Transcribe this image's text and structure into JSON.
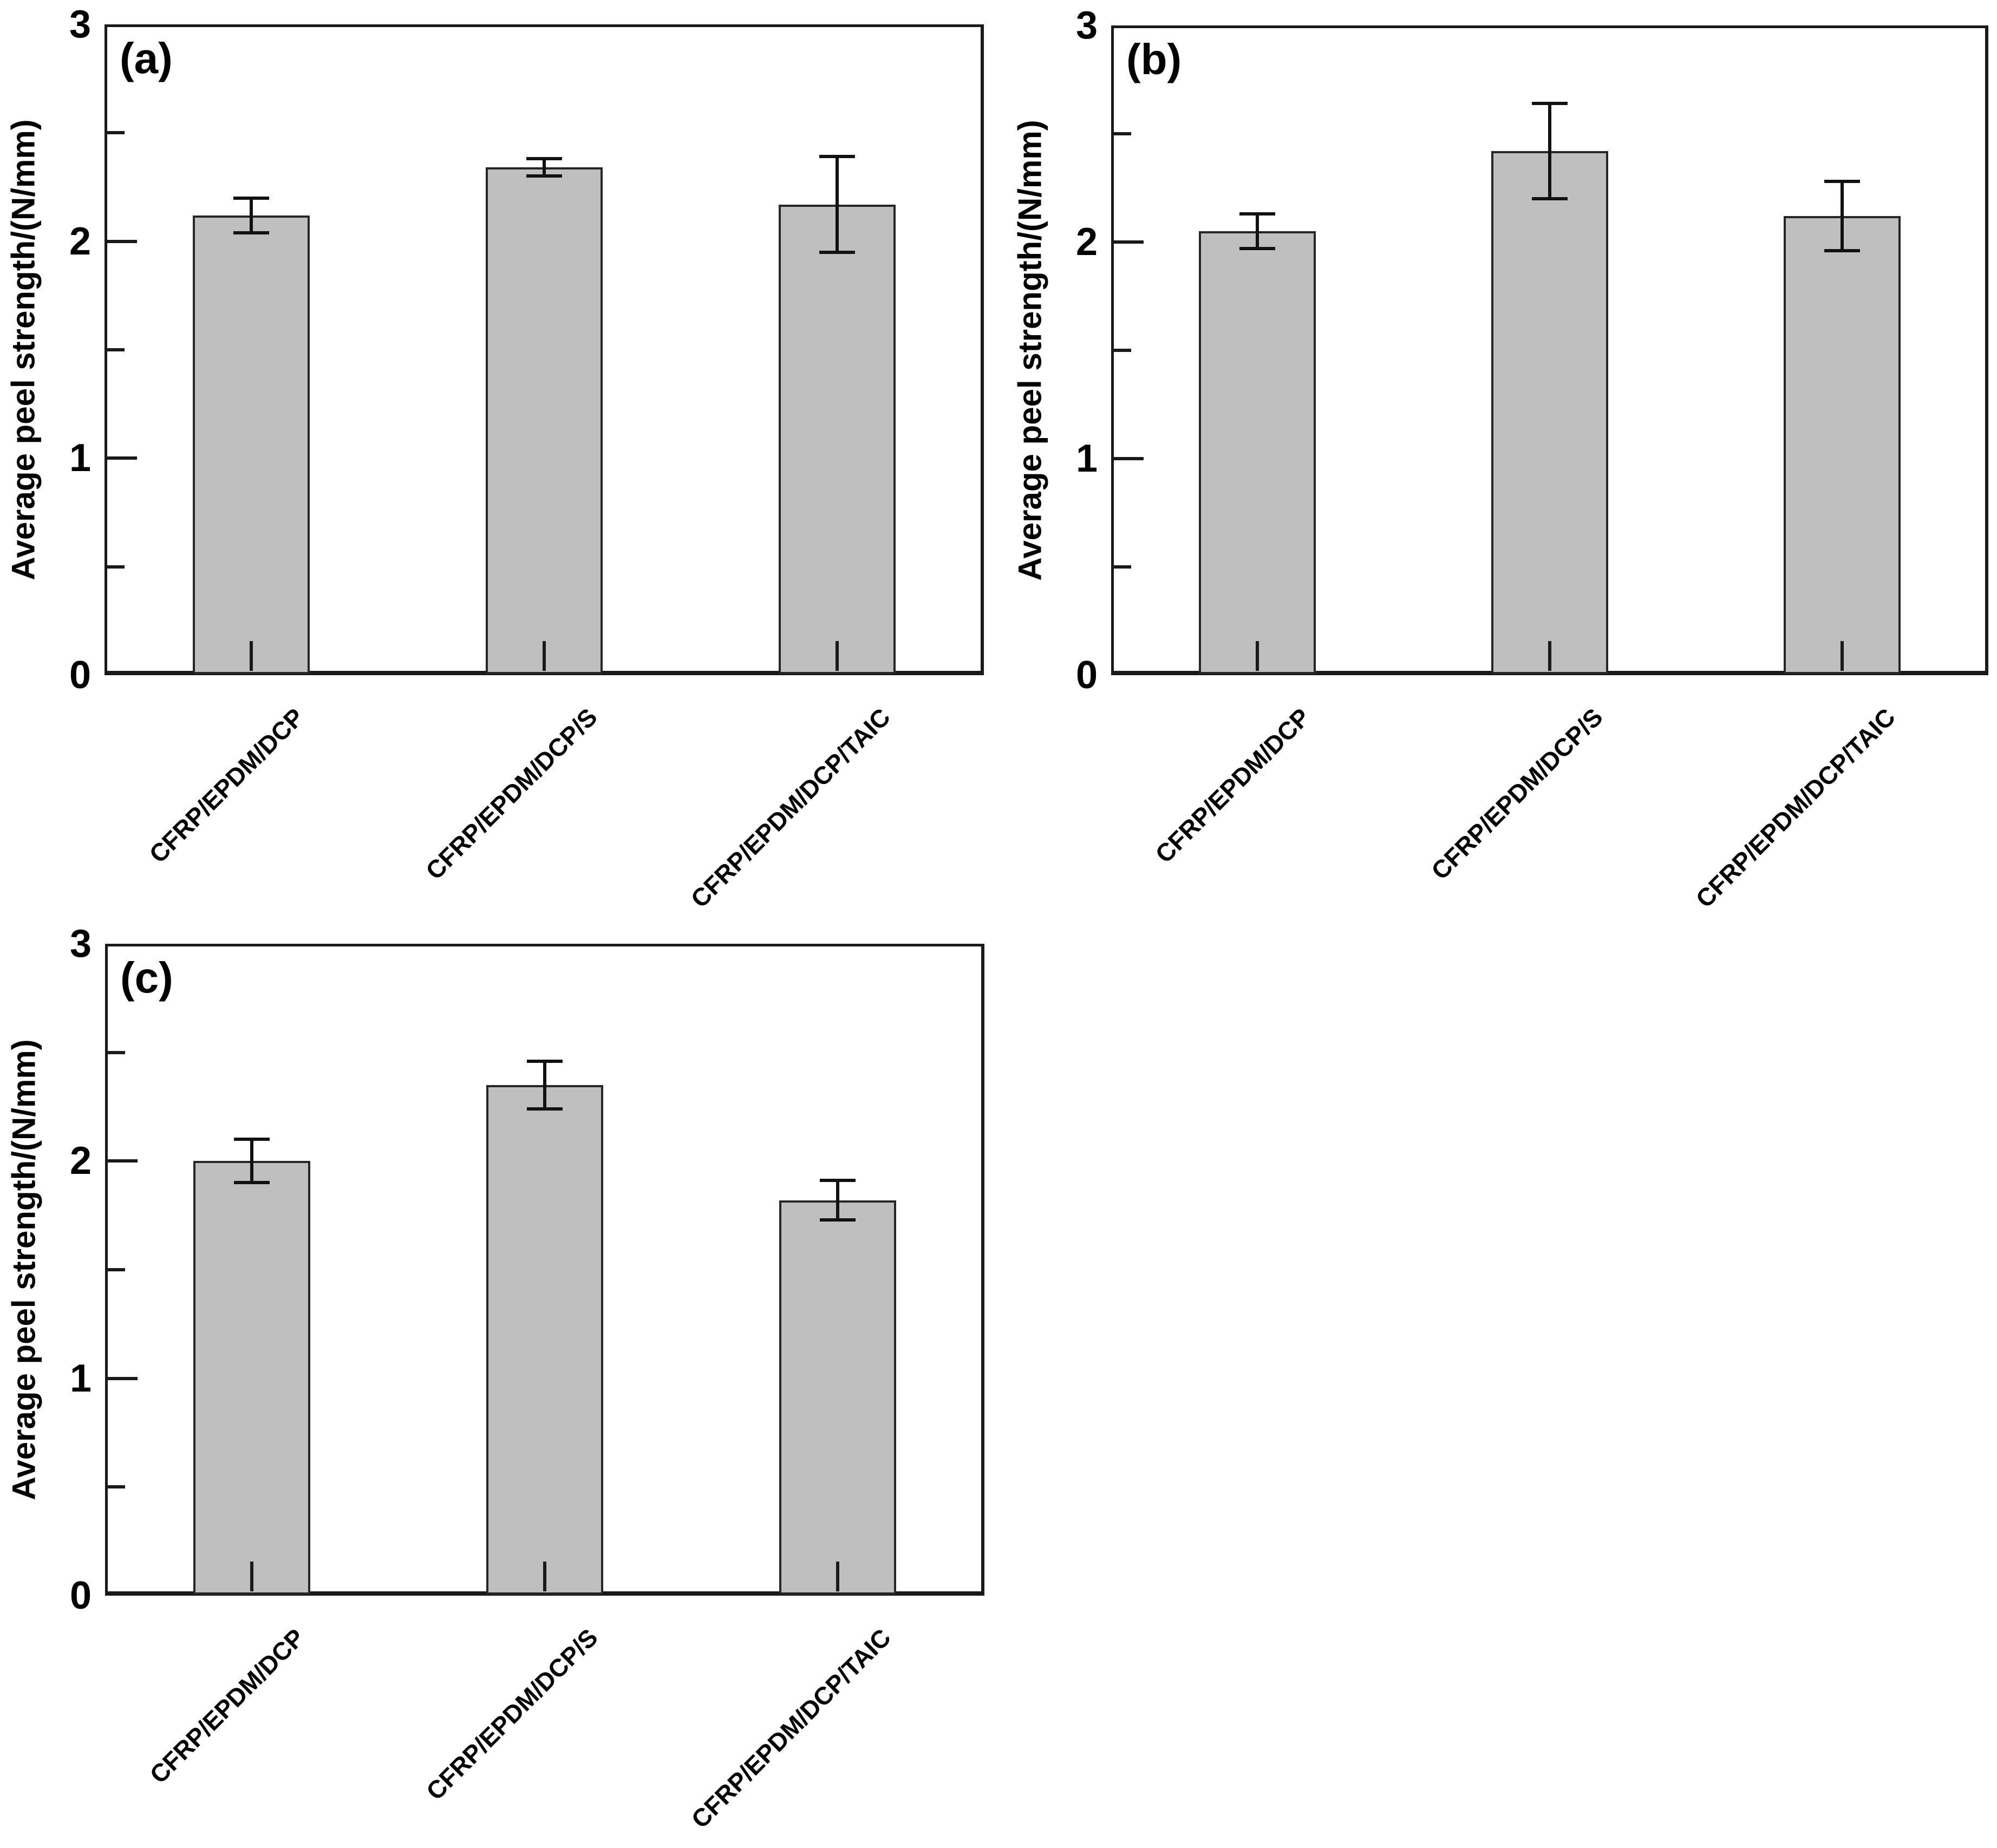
{
  "figure": {
    "background": "#ffffff",
    "frame_color": "#1a1a1a",
    "text_color": "#000000"
  },
  "chart_data": [
    {
      "type": "bar",
      "panel_label": "(a)",
      "ylabel": "Average peel strength/(N/mm)",
      "xlabel": "",
      "categories": [
        "CFRP/EPDM/DCP",
        "CFRP/EPDM/DCP/S",
        "CFRP/EPDM/DCP/TAIC"
      ],
      "values": [
        2.12,
        2.34,
        2.17
      ],
      "error_bars": [
        0.08,
        0.04,
        0.22
      ],
      "ylim": [
        0,
        3
      ],
      "yticks": [
        0,
        1,
        2,
        3
      ],
      "minor_yticks": [
        0.5,
        1.5,
        2.5
      ],
      "bar_color": "#bfbfbf",
      "bar_border_color": "#262626",
      "grid": false,
      "legend": null
    },
    {
      "type": "bar",
      "panel_label": "(b)",
      "ylabel": "Average peel strength/(N/mm)",
      "xlabel": "",
      "categories": [
        "CFRP/EPDM/DCP",
        "CFRP/EPDM/DCP/S",
        "CFRP/EPDM/DCP/TAIC"
      ],
      "values": [
        2.05,
        2.42,
        2.12
      ],
      "error_bars": [
        0.08,
        0.22,
        0.16
      ],
      "ylim": [
        0,
        3
      ],
      "yticks": [
        0,
        1,
        2,
        3
      ],
      "minor_yticks": [
        0.5,
        1.5,
        2.5
      ],
      "bar_color": "#bfbfbf",
      "bar_border_color": "#262626",
      "grid": false,
      "legend": null
    },
    {
      "type": "bar",
      "panel_label": "(c)",
      "ylabel": "Average peel strength/(N/mm)",
      "xlabel": "",
      "categories": [
        "CFRP/EPDM/DCP",
        "CFRP/EPDM/DCP/S",
        "CFRP/EPDM/DCP/TAIC"
      ],
      "values": [
        2.0,
        2.35,
        1.82
      ],
      "error_bars": [
        0.1,
        0.11,
        0.09
      ],
      "ylim": [
        0,
        3
      ],
      "yticks": [
        0,
        1,
        2,
        3
      ],
      "minor_yticks": [
        0.5,
        1.5,
        2.5
      ],
      "bar_color": "#bfbfbf",
      "bar_border_color": "#262626",
      "grid": false,
      "legend": null
    }
  ]
}
